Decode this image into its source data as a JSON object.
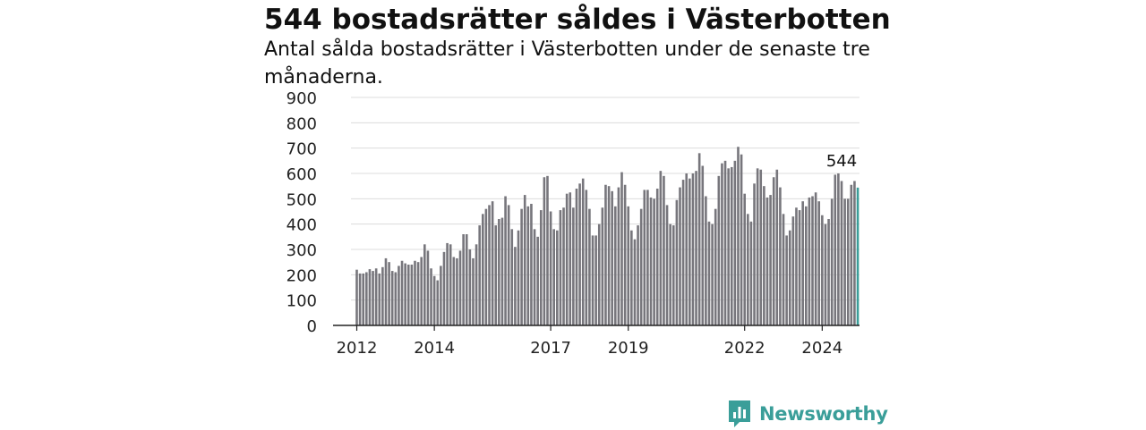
{
  "title": "544 bostadsrätter såldes i Västerbotten",
  "subtitle": "Antal sålda bostadsrätter i Västerbotten under de senaste tre månaderna.",
  "brand": {
    "name": "Newsworthy",
    "icon": "newsworthy-logo-icon",
    "color": "#3a9e99"
  },
  "chart_data": {
    "type": "bar",
    "title": "544 bostadsrätter såldes i Västerbotten",
    "subtitle": "Antal sålda bostadsrätter i Västerbotten under de senaste tre månaderna.",
    "xlabel": "",
    "ylabel": "",
    "ylim": [
      0,
      900
    ],
    "yticks": [
      0,
      100,
      200,
      300,
      400,
      500,
      600,
      700,
      800,
      900
    ],
    "xticks": [
      "2012",
      "2014",
      "2017",
      "2019",
      "2022",
      "2024"
    ],
    "x_start": "2012-01",
    "x_frequency": "monthly",
    "grid": true,
    "bar_color": "#77767c",
    "highlight_color": "#3a9e99",
    "highlight_label": "544",
    "values": [
      220,
      205,
      205,
      210,
      222,
      215,
      225,
      205,
      230,
      265,
      250,
      215,
      210,
      235,
      255,
      245,
      240,
      240,
      255,
      250,
      270,
      320,
      295,
      225,
      195,
      178,
      235,
      290,
      325,
      320,
      270,
      265,
      295,
      360,
      360,
      300,
      265,
      320,
      395,
      440,
      460,
      475,
      490,
      395,
      420,
      425,
      510,
      475,
      380,
      310,
      375,
      460,
      515,
      470,
      480,
      380,
      350,
      455,
      585,
      590,
      450,
      380,
      375,
      455,
      465,
      520,
      525,
      465,
      540,
      560,
      580,
      535,
      460,
      355,
      355,
      400,
      465,
      555,
      550,
      530,
      470,
      545,
      605,
      555,
      470,
      375,
      340,
      395,
      460,
      535,
      535,
      505,
      500,
      540,
      610,
      590,
      475,
      400,
      395,
      495,
      545,
      575,
      600,
      580,
      600,
      610,
      680,
      630,
      510,
      410,
      400,
      460,
      590,
      640,
      650,
      620,
      625,
      650,
      705,
      675,
      520,
      440,
      410,
      560,
      620,
      615,
      550,
      505,
      515,
      585,
      615,
      545,
      440,
      355,
      375,
      430,
      465,
      455,
      490,
      470,
      505,
      510,
      525,
      490,
      435,
      400,
      420,
      500,
      595,
      600,
      570,
      500,
      500,
      555,
      570,
      544
    ]
  }
}
